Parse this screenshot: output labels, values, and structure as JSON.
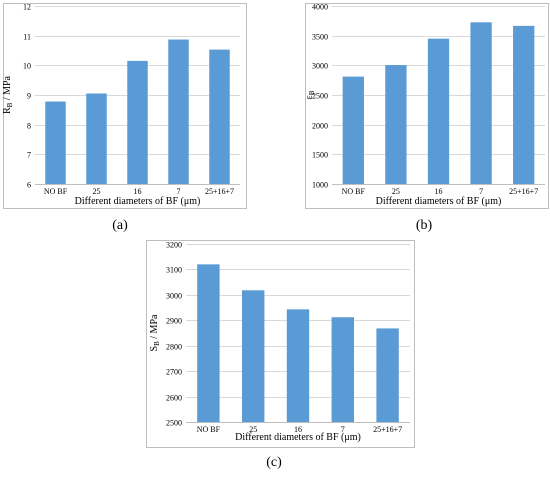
{
  "chart_data": [
    {
      "type": "bar",
      "panel_label": "(a)",
      "categories": [
        "NO BF",
        "25",
        "16",
        "7",
        "25+16+7"
      ],
      "values": [
        8.78,
        9.05,
        10.15,
        10.87,
        10.53
      ],
      "xlabel": "Different diameters of BF (μm)",
      "ylabel_main": "R",
      "ylabel_sub": "B",
      "ylabel_rest": " / MPa",
      "ylim": [
        6,
        12
      ],
      "yticks": [
        "6",
        "7",
        "8",
        "9",
        "10",
        "11",
        "12"
      ],
      "grid": true,
      "color": "#5b9bd5"
    },
    {
      "type": "bar",
      "panel_label": "(b)",
      "categories": [
        "NO BF",
        "25",
        "16",
        "7",
        "25+16+7"
      ],
      "values": [
        2810,
        3005,
        3450,
        3725,
        3665
      ],
      "xlabel": "Different diameters of BF (μm)",
      "ylabel_main": "ε",
      "ylabel_sub": "B",
      "ylabel_rest": "",
      "ylim": [
        1000,
        4000
      ],
      "yticks": [
        "1000",
        "1500",
        "2000",
        "2500",
        "3000",
        "3500",
        "4000"
      ],
      "grid": true,
      "color": "#5b9bd5"
    },
    {
      "type": "bar",
      "panel_label": "(c)",
      "categories": [
        "NO BF",
        "25",
        "16",
        "7",
        "25+16+7"
      ],
      "values": [
        3120,
        3018,
        2943,
        2912,
        2868
      ],
      "xlabel": "Different diameters of BF (μm)",
      "ylabel_main": "S",
      "ylabel_sub": "B",
      "ylabel_rest": " / MPa",
      "ylim": [
        2500,
        3200
      ],
      "yticks": [
        "2500",
        "2600",
        "2700",
        "2800",
        "2900",
        "3000",
        "3100",
        "3200"
      ],
      "grid": true,
      "color": "#5b9bd5"
    }
  ]
}
